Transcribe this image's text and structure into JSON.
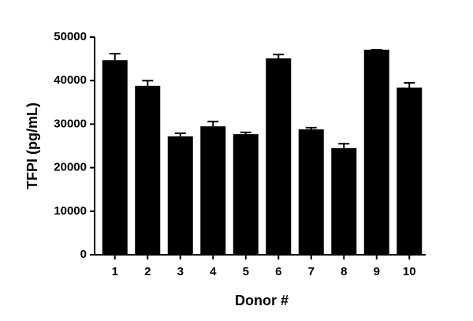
{
  "chart_data": {
    "type": "bar",
    "x_label": "Donor #",
    "y_label": "TFPI (pg/mL)",
    "categories": [
      "1",
      "2",
      "3",
      "4",
      "5",
      "6",
      "7",
      "8",
      "9",
      "10"
    ],
    "values": [
      44700,
      38800,
      27200,
      29500,
      27700,
      45100,
      28800,
      24500,
      47100,
      38400
    ],
    "errors": [
      1500,
      1200,
      700,
      1100,
      400,
      900,
      400,
      1000,
      0,
      1100
    ],
    "color": "#000000",
    "ylim": [
      0,
      50000
    ],
    "yticks": [
      0,
      10000,
      20000,
      30000,
      40000,
      50000
    ],
    "grid": false
  }
}
